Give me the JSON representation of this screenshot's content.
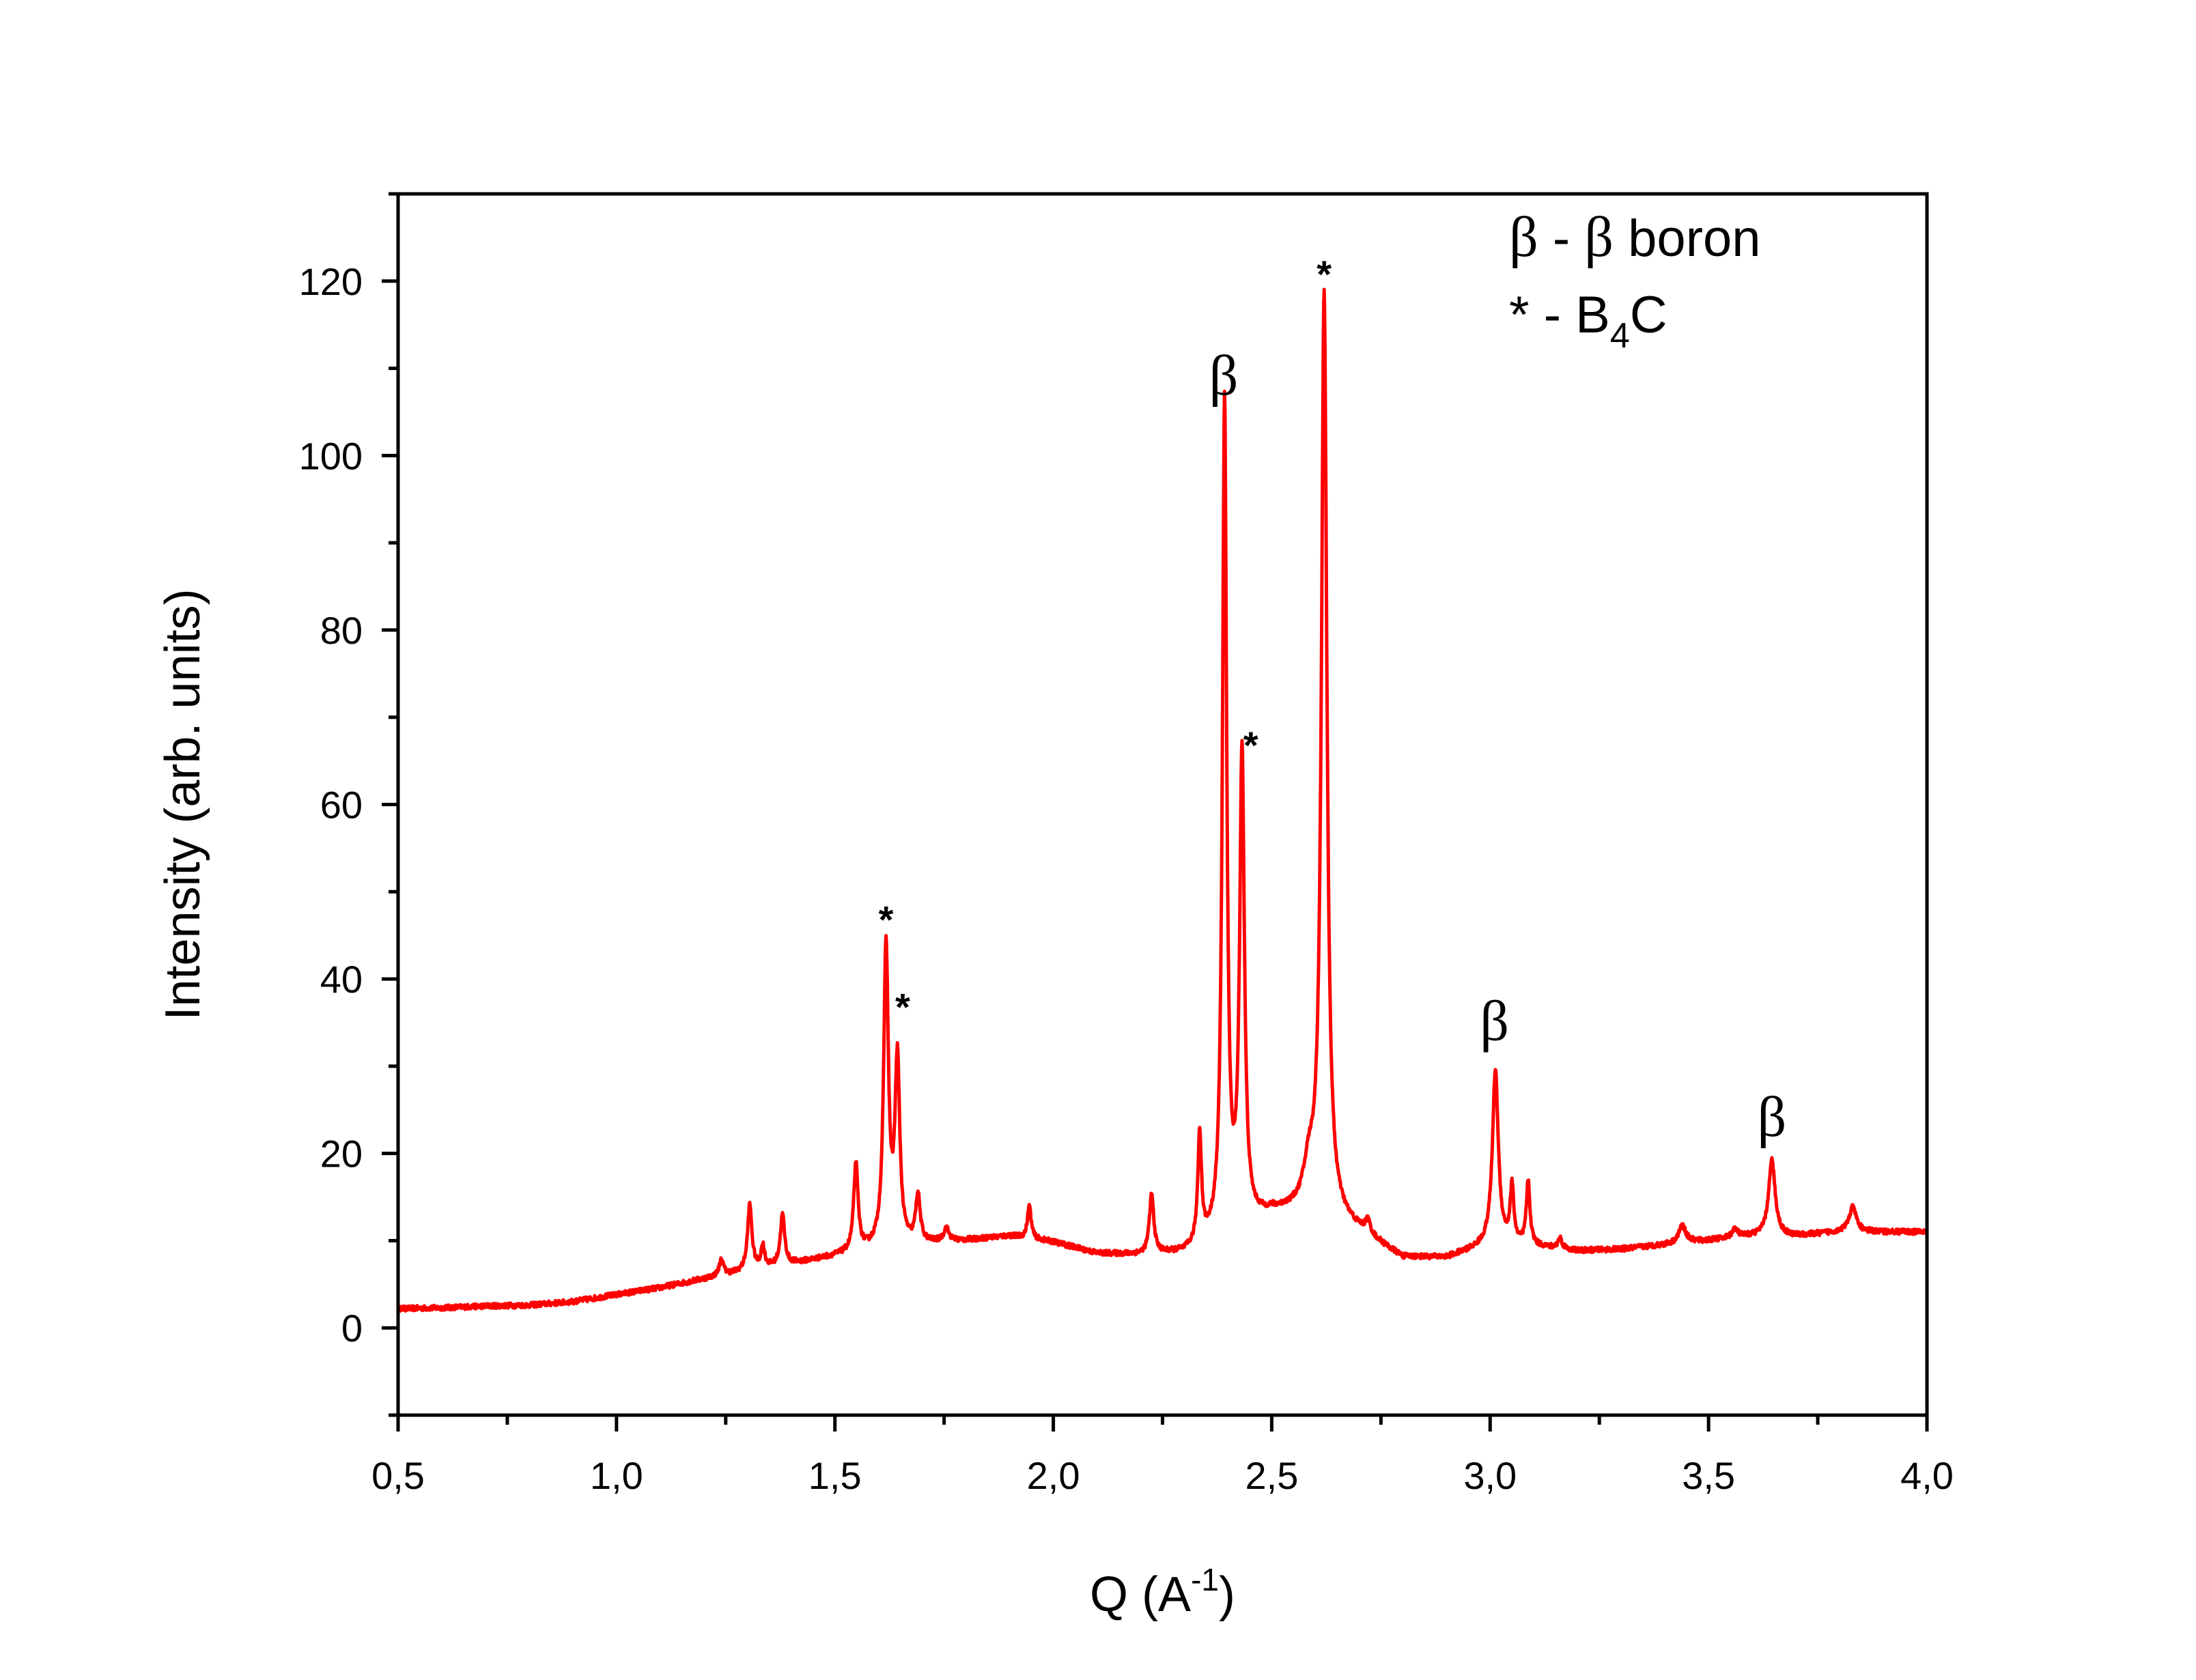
{
  "chart_data": {
    "type": "line",
    "xlabel": "Q (A",
    "xlabel_sup": "-1",
    "xlabel_close": ")",
    "ylabel": "Intensity (arb. units)",
    "xlim": [
      0.5,
      4.0
    ],
    "ylim": [
      -10,
      130
    ],
    "xticks": [
      0.5,
      1.0,
      1.5,
      2.0,
      2.5,
      3.0,
      3.5,
      4.0
    ],
    "xtick_labels": [
      "0,5",
      "1,0",
      "1,5",
      "2,0",
      "2,5",
      "3,0",
      "3,5",
      "4,0"
    ],
    "yticks": [
      0,
      20,
      40,
      60,
      80,
      100,
      120
    ],
    "ytick_labels": [
      "0",
      "20",
      "40",
      "60",
      "80",
      "100",
      "120"
    ],
    "grid": false,
    "line_color": "#ff0000",
    "baseline": [
      [
        0.5,
        2.2
      ],
      [
        0.6,
        2.3
      ],
      [
        0.7,
        2.5
      ],
      [
        0.8,
        2.6
      ],
      [
        0.9,
        3.0
      ],
      [
        1.0,
        3.8
      ],
      [
        1.1,
        4.6
      ],
      [
        1.2,
        5.6
      ],
      [
        1.3,
        6.5
      ],
      [
        1.4,
        7.3
      ],
      [
        1.5,
        8.2
      ],
      [
        1.6,
        9.0
      ],
      [
        1.7,
        9.6
      ],
      [
        1.8,
        10.0
      ],
      [
        1.9,
        10.5
      ],
      [
        2.0,
        9.8
      ],
      [
        2.1,
        8.5
      ],
      [
        2.2,
        8.3
      ],
      [
        2.3,
        8.5
      ],
      [
        2.4,
        10.5
      ],
      [
        2.5,
        13.0
      ],
      [
        2.6,
        13.5
      ],
      [
        2.7,
        11.0
      ],
      [
        2.8,
        8.0
      ],
      [
        2.9,
        8.0
      ],
      [
        3.0,
        9.5
      ],
      [
        3.1,
        9.3
      ],
      [
        3.2,
        8.8
      ],
      [
        3.3,
        9.0
      ],
      [
        3.4,
        9.5
      ],
      [
        3.5,
        10.0
      ],
      [
        3.6,
        10.5
      ],
      [
        3.7,
        10.5
      ],
      [
        3.8,
        11.0
      ],
      [
        3.9,
        11.0
      ],
      [
        4.0,
        11.0
      ]
    ],
    "peaks": [
      {
        "x": 1.24,
        "height": 1.8,
        "width": 0.006
      },
      {
        "x": 1.305,
        "height": 7.5,
        "width": 0.006
      },
      {
        "x": 1.335,
        "height": 2.5,
        "width": 0.005
      },
      {
        "x": 1.38,
        "height": 5.8,
        "width": 0.006
      },
      {
        "x": 1.548,
        "height": 10.0,
        "width": 0.006
      },
      {
        "x": 1.617,
        "height": 34.5,
        "width": 0.0065
      },
      {
        "x": 1.643,
        "height": 21.0,
        "width": 0.0065
      },
      {
        "x": 1.69,
        "height": 5.5,
        "width": 0.006
      },
      {
        "x": 1.755,
        "height": 1.5,
        "width": 0.007
      },
      {
        "x": 1.945,
        "height": 3.8,
        "width": 0.005
      },
      {
        "x": 2.225,
        "height": 6.8,
        "width": 0.006
      },
      {
        "x": 2.335,
        "height": 12.5,
        "width": 0.005
      },
      {
        "x": 2.392,
        "height": 95.5,
        "width": 0.0058
      },
      {
        "x": 2.432,
        "height": 54.0,
        "width": 0.0065
      },
      {
        "x": 2.585,
        "height": 4.0,
        "width": 0.014
      },
      {
        "x": 2.62,
        "height": 105.5,
        "width": 0.0075
      },
      {
        "x": 2.72,
        "height": 1.5,
        "width": 0.007
      },
      {
        "x": 3.012,
        "height": 20.0,
        "width": 0.008
      },
      {
        "x": 3.05,
        "height": 6.5,
        "width": 0.005
      },
      {
        "x": 3.087,
        "height": 7.2,
        "width": 0.005
      },
      {
        "x": 3.16,
        "height": 1.2,
        "width": 0.006
      },
      {
        "x": 3.44,
        "height": 2.0,
        "width": 0.01
      },
      {
        "x": 3.56,
        "height": 1.0,
        "width": 0.008
      },
      {
        "x": 3.645,
        "height": 8.7,
        "width": 0.009
      },
      {
        "x": 3.83,
        "height": 2.8,
        "width": 0.01
      }
    ],
    "annotations": [
      {
        "text": "*",
        "kind": "star",
        "x": 1.617,
        "y": 47
      },
      {
        "text": "*",
        "kind": "star",
        "x": 1.655,
        "y": 37
      },
      {
        "text": "β",
        "kind": "beta",
        "x": 2.39,
        "y": 107
      },
      {
        "text": "*",
        "kind": "star",
        "x": 2.452,
        "y": 67
      },
      {
        "text": "*",
        "kind": "star",
        "x": 2.62,
        "y": 121
      },
      {
        "text": "β",
        "kind": "beta",
        "x": 3.01,
        "y": 33
      },
      {
        "text": "β",
        "kind": "beta",
        "x": 3.645,
        "y": 22
      }
    ],
    "legend": {
      "placement": "top-right",
      "line1": {
        "symbol": "β",
        "sep": " - ",
        "symbol2": "β",
        "text": " boron"
      },
      "line2": {
        "symbol": "*",
        "sep": " - B",
        "sub": "4",
        "text": "C"
      }
    }
  }
}
